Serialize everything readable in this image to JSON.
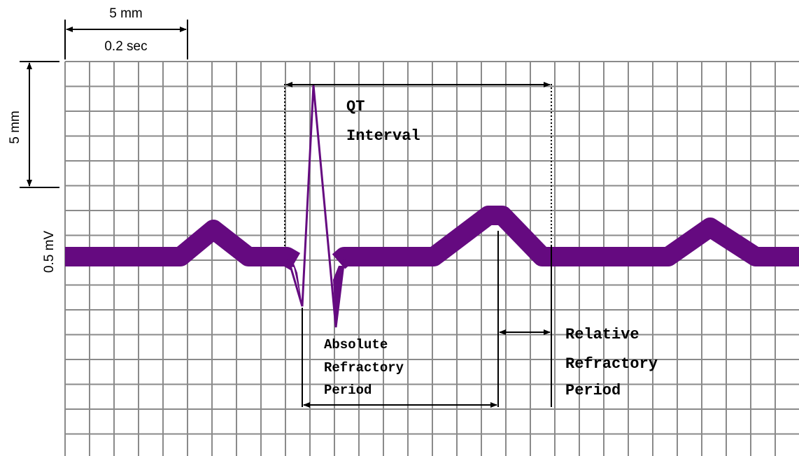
{
  "scale": {
    "top_width": "5 mm",
    "top_time": "0.2 sec",
    "left_height": "5 mm",
    "left_voltage": "0.5 mV"
  },
  "labels": {
    "qt": [
      "QT",
      "Interval"
    ],
    "absolute": [
      "Absolute",
      "Refractory",
      "Period"
    ],
    "relative": [
      "Relative",
      "Refractory",
      "Period"
    ]
  }
}
